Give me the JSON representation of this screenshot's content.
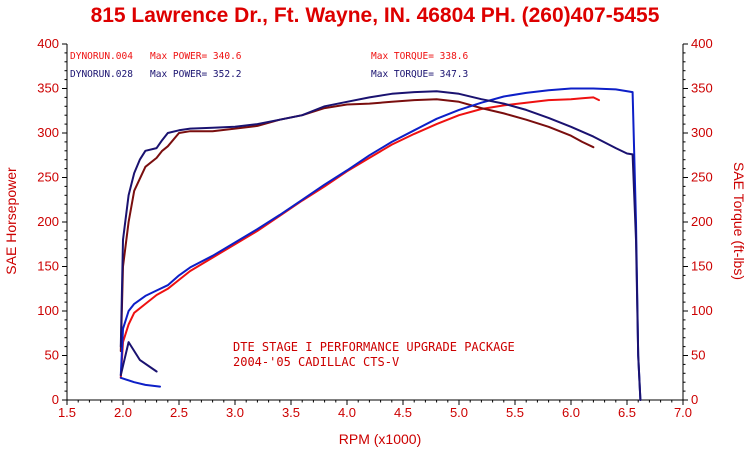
{
  "chart_data": {
    "type": "line",
    "title": "815 Lawrence Dr., Ft. Wayne, IN. 46804  PH. (260)407-5455",
    "xlabel": "RPM (x1000)",
    "ylabel_left": "SAE Horsepower",
    "ylabel_right": "SAE Torque (ft-lbs)",
    "xlim": [
      1.5,
      7.0
    ],
    "ylim": [
      0,
      400
    ],
    "x_ticks": [
      "1.5",
      "2.0",
      "2.5",
      "3.0",
      "3.5",
      "4.0",
      "4.5",
      "5.0",
      "5.5",
      "6.0",
      "6.5",
      "7.0"
    ],
    "y_ticks": [
      "0",
      "50",
      "100",
      "150",
      "200",
      "250",
      "300",
      "350",
      "400"
    ],
    "grid": false,
    "legend": {
      "run1": {
        "name": "DYNORUN.004",
        "max_power": "Max POWER= 340.6",
        "max_torque": "Max TORQUE= 338.6"
      },
      "run2": {
        "name": "DYNORUN.028",
        "max_power": "Max POWER= 352.2",
        "max_torque": "Max TORQUE= 347.3"
      }
    },
    "annotation": [
      "DTE STAGE I PERFORMANCE UPGRADE PACKAGE",
      "2004-'05 CADILLAC CTS-V"
    ],
    "colors": {
      "title": "#dd0000",
      "axis_text": "#cc0000",
      "run1_power": "#ee1111",
      "run1_torque": "#7a0e0e",
      "run2_power": "#0d1fc7",
      "run2_torque": "#1a1270",
      "axes": "#000000"
    },
    "series": [
      {
        "id": "run1_power",
        "x": [
          1.98,
          2.0,
          2.05,
          2.1,
          2.2,
          2.3,
          2.4,
          2.5,
          2.6,
          2.8,
          3.0,
          3.2,
          3.4,
          3.6,
          3.8,
          4.0,
          4.2,
          4.4,
          4.6,
          4.8,
          5.0,
          5.2,
          5.4,
          5.6,
          5.8,
          6.0,
          6.1,
          6.2,
          6.25
        ],
        "y": [
          25,
          65,
          85,
          98,
          108,
          118,
          125,
          135,
          145,
          160,
          175,
          190,
          207,
          224,
          240,
          257,
          272,
          287,
          299,
          310,
          320,
          327,
          331,
          334,
          337,
          338,
          339,
          340,
          337
        ]
      },
      {
        "id": "run1_torque",
        "x": [
          1.98,
          2.0,
          2.05,
          2.1,
          2.2,
          2.3,
          2.35,
          2.4,
          2.5,
          2.6,
          2.8,
          3.0,
          3.2,
          3.4,
          3.6,
          3.8,
          4.0,
          4.2,
          4.4,
          4.6,
          4.8,
          5.0,
          5.2,
          5.4,
          5.6,
          5.8,
          6.0,
          6.1,
          6.2
        ],
        "y": [
          55,
          150,
          200,
          235,
          262,
          272,
          280,
          285,
          300,
          302,
          302,
          305,
          308,
          315,
          320,
          328,
          332,
          333,
          335,
          337,
          338,
          335,
          328,
          322,
          315,
          307,
          297,
          290,
          284
        ]
      },
      {
        "id": "run2_power",
        "x": [
          1.98,
          2.0,
          2.05,
          2.1,
          2.2,
          2.3,
          2.4,
          2.5,
          2.6,
          2.8,
          3.0,
          3.2,
          3.4,
          3.6,
          3.8,
          4.0,
          4.2,
          4.4,
          4.6,
          4.8,
          5.0,
          5.2,
          5.4,
          5.6,
          5.8,
          6.0,
          6.2,
          6.4,
          6.55,
          6.58,
          6.6,
          6.62
        ],
        "y": [
          28,
          80,
          100,
          108,
          117,
          123,
          129,
          140,
          149,
          162,
          177,
          192,
          208,
          225,
          242,
          258,
          275,
          290,
          303,
          316,
          326,
          334,
          341,
          345,
          348,
          350,
          350,
          349,
          346,
          200,
          50,
          0
        ]
      },
      {
        "id": "run2_torque",
        "x": [
          1.98,
          2.0,
          2.05,
          2.1,
          2.15,
          2.2,
          2.3,
          2.35,
          2.4,
          2.5,
          2.6,
          2.8,
          3.0,
          3.2,
          3.4,
          3.6,
          3.8,
          4.0,
          4.2,
          4.4,
          4.6,
          4.8,
          5.0,
          5.2,
          5.4,
          5.6,
          5.8,
          6.0,
          6.2,
          6.4,
          6.5,
          6.55,
          6.58,
          6.6,
          6.62
        ],
        "y": [
          60,
          180,
          230,
          255,
          270,
          280,
          283,
          292,
          300,
          303,
          305,
          306,
          307,
          310,
          315,
          320,
          330,
          335,
          340,
          344,
          346,
          347,
          344,
          338,
          333,
          326,
          317,
          307,
          296,
          283,
          277,
          276,
          180,
          50,
          0
        ]
      },
      {
        "id": "run1_power_rundown",
        "x": [
          1.98,
          2.05,
          2.15,
          2.3
        ],
        "y": [
          28,
          65,
          45,
          32
        ]
      },
      {
        "id": "run2_power_rundown",
        "x": [
          1.98,
          2.1,
          2.2,
          2.33
        ],
        "y": [
          25,
          20,
          17,
          15
        ]
      }
    ]
  }
}
